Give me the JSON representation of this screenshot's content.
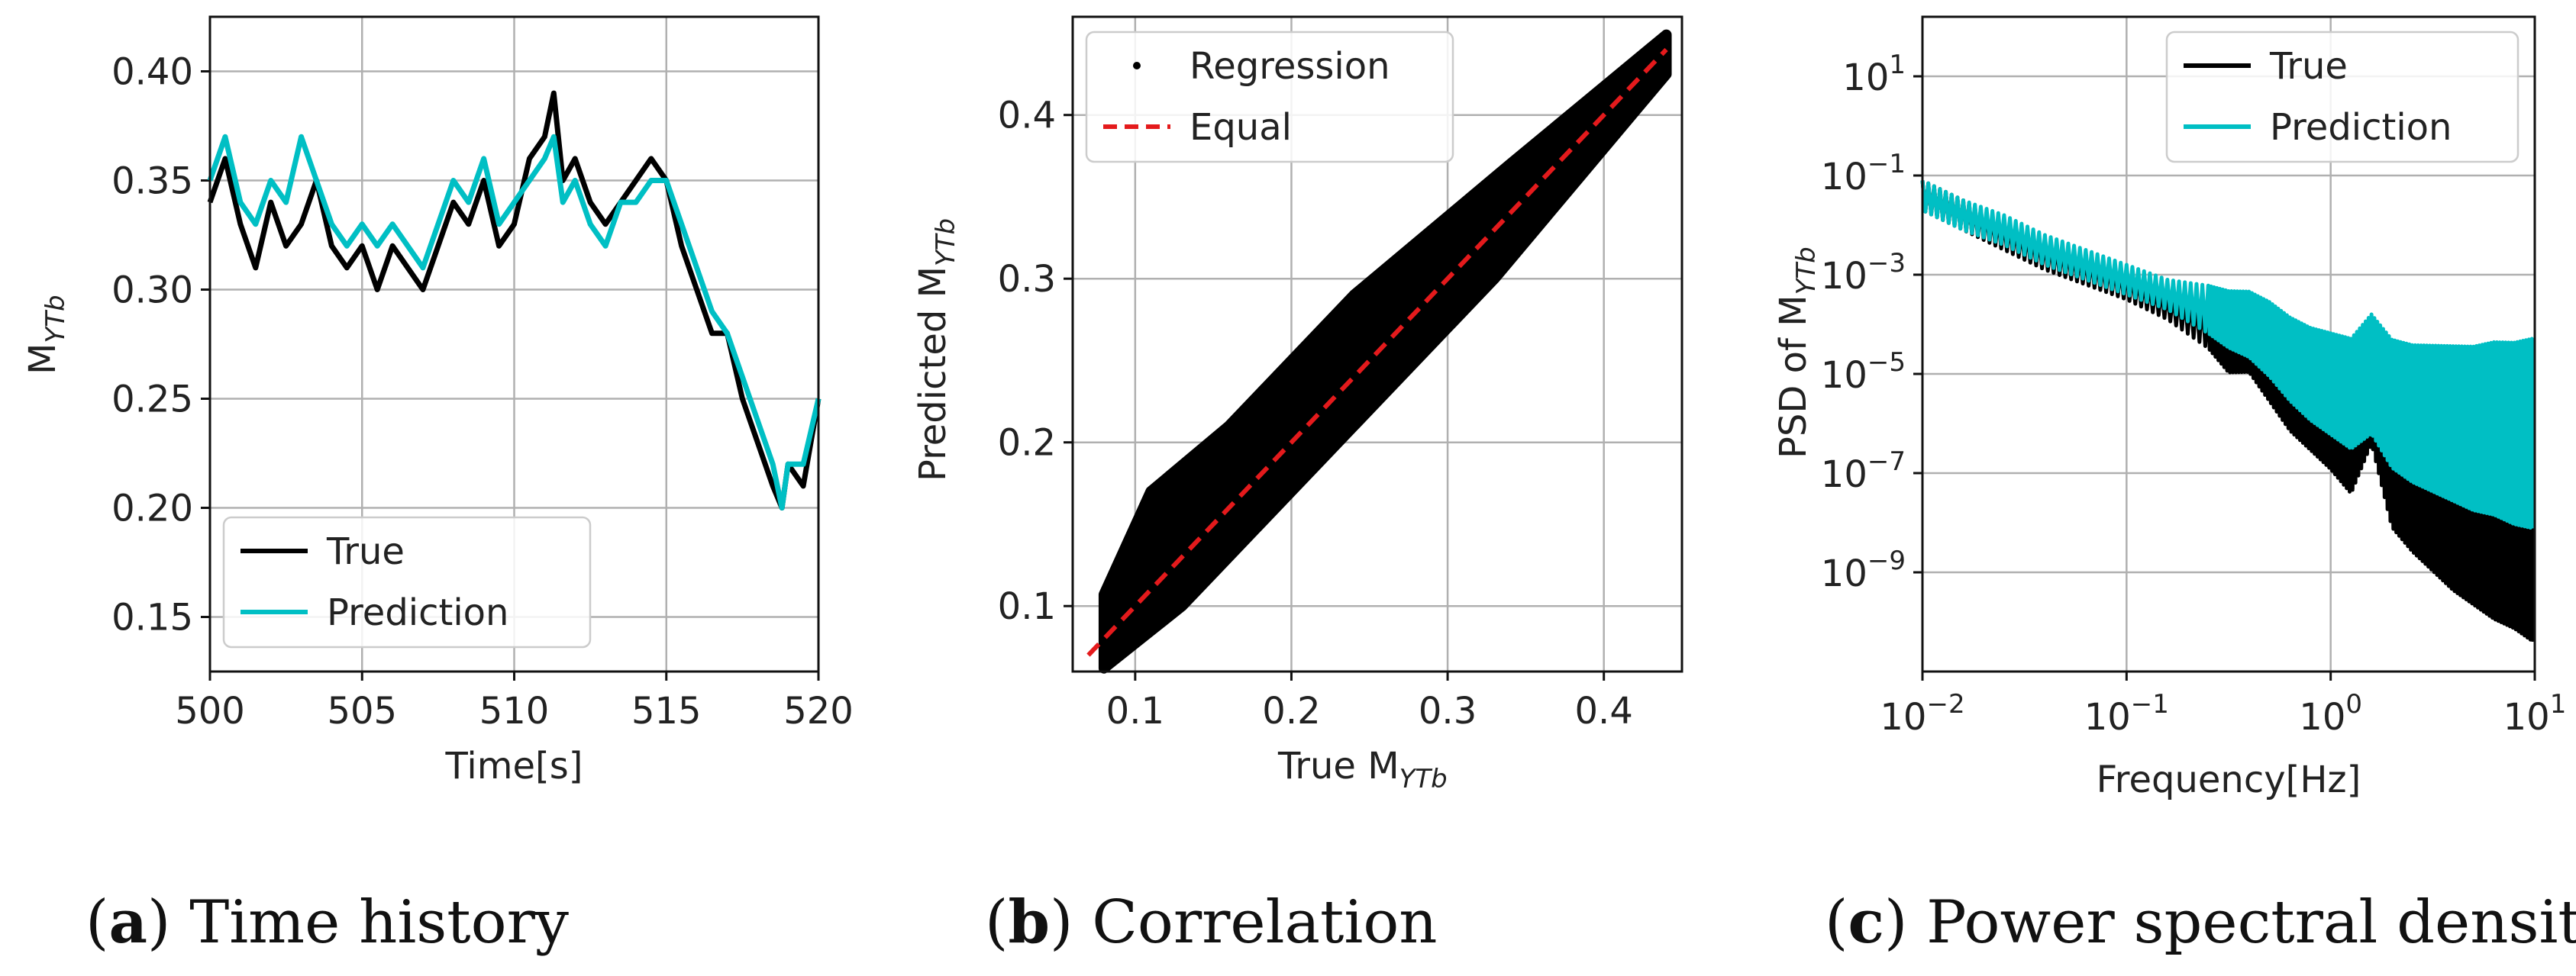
{
  "colors": {
    "true": "#000000",
    "prediction": "#00BFC4",
    "equal": "#e41a1c"
  },
  "chart_data": [
    {
      "type": "line",
      "panel": "a",
      "caption_letter": "a",
      "caption_text": ") Time history",
      "caption_open": "(",
      "xlabel": "Time[s]",
      "ylabel_main": "M",
      "ylabel_sub": "YTb",
      "xlim": [
        500,
        520
      ],
      "ylim": [
        0.125,
        0.425
      ],
      "xticks": [
        "500",
        "505",
        "510",
        "515",
        "520"
      ],
      "yticks": [
        "0.15",
        "0.20",
        "0.25",
        "0.30",
        "0.35",
        "0.40"
      ],
      "legend": [
        "True",
        "Prediction"
      ],
      "legend_position": "bottom-left",
      "series": [
        {
          "name": "True",
          "x": [
            500,
            500.5,
            501,
            501.5,
            502,
            502.5,
            503,
            503.5,
            504,
            504.5,
            505,
            505.5,
            506,
            506.5,
            507,
            507.5,
            508,
            508.5,
            509,
            509.5,
            510,
            510.5,
            511,
            511.3,
            511.6,
            512,
            512.5,
            513,
            513.5,
            514,
            514.5,
            515,
            515.5,
            516,
            516.5,
            517,
            517.5,
            518,
            518.5,
            518.8,
            519,
            519.5,
            520
          ],
          "values": [
            0.34,
            0.36,
            0.33,
            0.31,
            0.34,
            0.32,
            0.33,
            0.35,
            0.32,
            0.31,
            0.32,
            0.3,
            0.32,
            0.31,
            0.3,
            0.32,
            0.34,
            0.33,
            0.35,
            0.32,
            0.33,
            0.36,
            0.37,
            0.39,
            0.35,
            0.36,
            0.34,
            0.33,
            0.34,
            0.35,
            0.36,
            0.35,
            0.32,
            0.3,
            0.28,
            0.28,
            0.25,
            0.23,
            0.21,
            0.2,
            0.22,
            0.21,
            0.25
          ]
        },
        {
          "name": "Prediction",
          "x": [
            500,
            500.5,
            501,
            501.5,
            502,
            502.5,
            503,
            503.5,
            504,
            504.5,
            505,
            505.5,
            506,
            506.5,
            507,
            507.5,
            508,
            508.5,
            509,
            509.5,
            510,
            510.5,
            511,
            511.3,
            511.6,
            512,
            512.5,
            513,
            513.5,
            514,
            514.5,
            515,
            515.5,
            516,
            516.5,
            517,
            517.5,
            518,
            518.5,
            518.8,
            519,
            519.5,
            520
          ],
          "values": [
            0.35,
            0.37,
            0.34,
            0.33,
            0.35,
            0.34,
            0.37,
            0.35,
            0.33,
            0.32,
            0.33,
            0.32,
            0.33,
            0.32,
            0.31,
            0.33,
            0.35,
            0.34,
            0.36,
            0.33,
            0.34,
            0.35,
            0.36,
            0.37,
            0.34,
            0.35,
            0.33,
            0.32,
            0.34,
            0.34,
            0.35,
            0.35,
            0.33,
            0.31,
            0.29,
            0.28,
            0.26,
            0.24,
            0.22,
            0.2,
            0.22,
            0.22,
            0.25
          ]
        }
      ]
    },
    {
      "type": "scatter",
      "panel": "b",
      "caption_letter": "b",
      "caption_text": ") Correlation",
      "caption_open": "(",
      "xlabel_main": "True M",
      "xlabel_sub": "YTb",
      "ylabel_main": "Predicted M",
      "ylabel_sub": "YTb",
      "xlim": [
        0.06,
        0.45
      ],
      "ylim": [
        0.06,
        0.46
      ],
      "xticks": [
        "0.1",
        "0.2",
        "0.3",
        "0.4"
      ],
      "yticks": [
        "0.1",
        "0.2",
        "0.3",
        "0.4"
      ],
      "legend": [
        "Regression",
        "Equal"
      ],
      "legend_position": "top-left",
      "regression_band": {
        "x_min": 0.08,
        "x_max": 0.44,
        "half_width": 0.03
      },
      "equal_line": {
        "x": [
          0.07,
          0.44
        ],
        "values": [
          0.07,
          0.44
        ]
      }
    },
    {
      "type": "line",
      "panel": "c",
      "caption_letter": "c",
      "caption_text": ") Power spectral density",
      "caption_open": "(",
      "xlabel": "Frequency[Hz]",
      "ylabel_main": "PSD of M",
      "ylabel_sub": "YTb",
      "xscale": "log",
      "yscale": "log",
      "xlim_exp": [
        -2,
        1
      ],
      "ylim_exp": [
        -11,
        2.2
      ],
      "xticks": [
        {
          "base": "10",
          "exp": "−2"
        },
        {
          "base": "10",
          "exp": "−1"
        },
        {
          "base": "10",
          "exp": "0"
        },
        {
          "base": "10",
          "exp": "1"
        }
      ],
      "yticks": [
        {
          "base": "10",
          "exp": "−9"
        },
        {
          "base": "10",
          "exp": "−7"
        },
        {
          "base": "10",
          "exp": "−5"
        },
        {
          "base": "10",
          "exp": "−3"
        },
        {
          "base": "10",
          "exp": "−1"
        },
        {
          "base": "10",
          "exp": "1"
        }
      ],
      "legend": [
        "True",
        "Prediction"
      ],
      "legend_position": "top-right",
      "series": [
        {
          "name": "True",
          "log_x": [
            -2,
            -1.8,
            -1.6,
            -1.4,
            -1.2,
            -1.0,
            -0.8,
            -0.6,
            -0.5,
            -0.4,
            -0.3,
            -0.2,
            -0.1,
            0,
            0.1,
            0.2,
            0.3,
            0.4,
            0.5,
            0.6,
            0.7,
            0.8,
            0.9,
            1.0
          ],
          "log_values": [
            -1.4,
            -1.8,
            -2.2,
            -2.6,
            -2.9,
            -3.2,
            -3.6,
            -4.0,
            -4.4,
            -4.3,
            -4.8,
            -5.3,
            -5.6,
            -5.9,
            -6.3,
            -5.2,
            -6.8,
            -7.2,
            -7.5,
            -7.8,
            -8.0,
            -8.2,
            -8.3,
            -8.5
          ]
        },
        {
          "name": "Prediction",
          "log_x": [
            -2,
            -1.8,
            -1.6,
            -1.4,
            -1.2,
            -1.0,
            -0.8,
            -0.6,
            -0.5,
            -0.4,
            -0.3,
            -0.2,
            -0.1,
            0,
            0.1,
            0.2,
            0.3,
            0.4,
            0.5,
            0.6,
            0.7,
            0.8,
            0.9,
            1.0
          ],
          "log_values": [
            -1.4,
            -1.8,
            -2.1,
            -2.5,
            -2.8,
            -3.1,
            -3.4,
            -3.7,
            -3.9,
            -4.0,
            -4.3,
            -4.7,
            -5.0,
            -5.2,
            -5.4,
            -5.0,
            -5.6,
            -5.8,
            -5.9,
            -6.0,
            -6.1,
            -6.1,
            -6.2,
            -6.2
          ]
        }
      ]
    }
  ]
}
